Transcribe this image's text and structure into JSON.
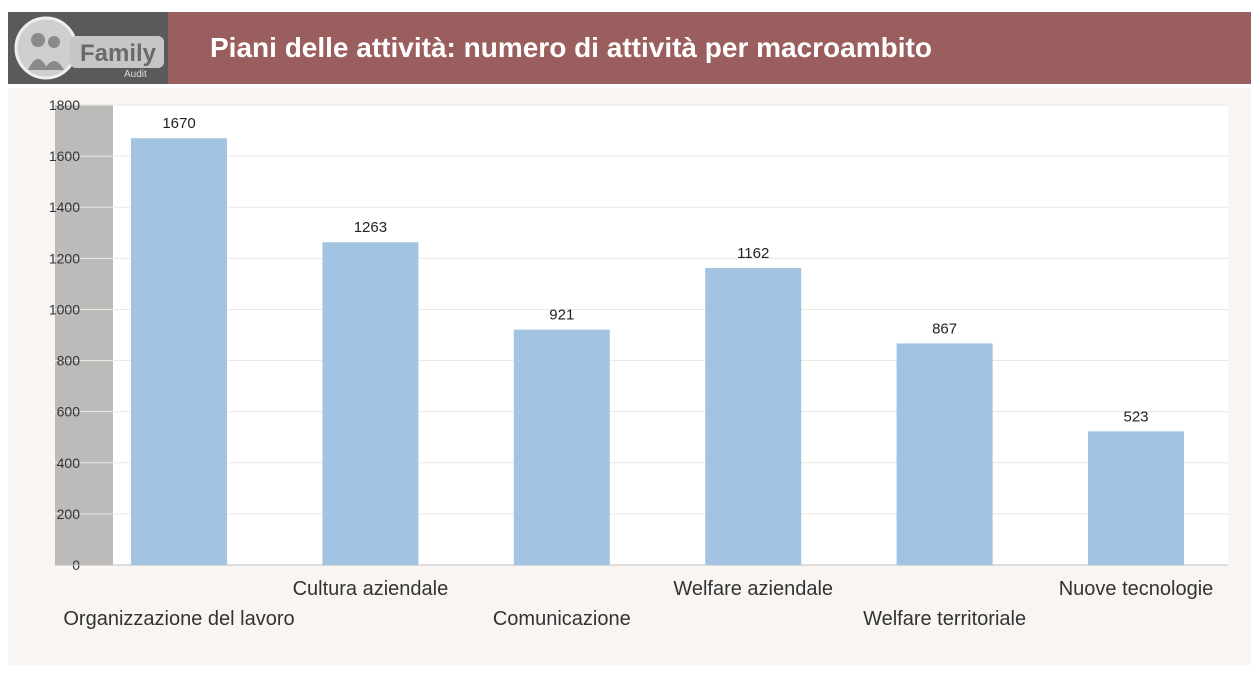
{
  "header": {
    "title": "Piani delle attività: numero di attività per macroambito",
    "logo_text": "Family",
    "logo_subtext": "Audit",
    "bar_color": "#9a5e5e"
  },
  "chart_data": {
    "type": "bar",
    "title": "",
    "xlabel": "",
    "ylabel": "",
    "categories": [
      "Organizzazione del lavoro",
      "Cultura aziendale",
      "Comunicazione",
      "Welfare aziendale",
      "Welfare territoriale",
      "Nuove tecnologie"
    ],
    "values": [
      1670,
      1263,
      921,
      1162,
      867,
      523
    ],
    "ylim": [
      0,
      1800
    ],
    "yticks": [
      0,
      200,
      400,
      600,
      800,
      1000,
      1200,
      1400,
      1600,
      1800
    ],
    "grid": true,
    "data_labels": true,
    "bar_color": "#a3c3e2"
  }
}
